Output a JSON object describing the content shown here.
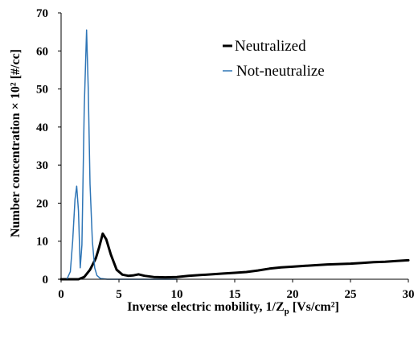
{
  "chart_data": {
    "type": "line",
    "title": "",
    "xlabel": "Inverse electric mobility, 1/Z",
    "xlabel_sub": "p",
    "xlabel_unit": " [Vs/cm²]",
    "ylabel": "Number concentration  × 10² [#/cc]",
    "xlim": [
      0,
      30
    ],
    "ylim": [
      0,
      70
    ],
    "x_ticks": [
      "0",
      "5",
      "10",
      "15",
      "20",
      "25",
      "30"
    ],
    "y_ticks": [
      "0",
      "10",
      "20",
      "30",
      "40",
      "50",
      "60",
      "70"
    ],
    "grid": false,
    "legend_position": "top-right",
    "series": [
      {
        "name": "Neutralized",
        "color": "#000000",
        "x": [
          0,
          1.5,
          2,
          2.5,
          3,
          3.3,
          3.6,
          3.9,
          4.3,
          4.8,
          5.3,
          5.8,
          6.2,
          6.7,
          7.2,
          8,
          9,
          10,
          11,
          12,
          13,
          14,
          15,
          16,
          17,
          18,
          19,
          20,
          21,
          22,
          23,
          24,
          25,
          26,
          27,
          28,
          29,
          30
        ],
        "y": [
          0,
          0,
          0.6,
          2.5,
          5.5,
          8.5,
          12,
          10.5,
          6.5,
          2.5,
          1.2,
          0.9,
          1.0,
          1.3,
          0.9,
          0.6,
          0.5,
          0.6,
          0.9,
          1.1,
          1.3,
          1.5,
          1.7,
          1.9,
          2.3,
          2.8,
          3.1,
          3.3,
          3.5,
          3.7,
          3.9,
          4.0,
          4.1,
          4.3,
          4.5,
          4.6,
          4.8,
          5.0
        ]
      },
      {
        "name": "Not-neutralize",
        "color": "#2e75b6",
        "x": [
          0.5,
          0.8,
          1.0,
          1.2,
          1.35,
          1.5,
          1.65,
          1.8,
          2.0,
          2.2,
          2.35,
          2.5,
          2.7,
          2.9,
          3.1,
          3.4,
          4.0,
          10.0
        ],
        "y": [
          0,
          2,
          10,
          21,
          24.5,
          18,
          3,
          9,
          45,
          65.5,
          50,
          25,
          10,
          3,
          1,
          0.2,
          0,
          0
        ]
      }
    ]
  }
}
